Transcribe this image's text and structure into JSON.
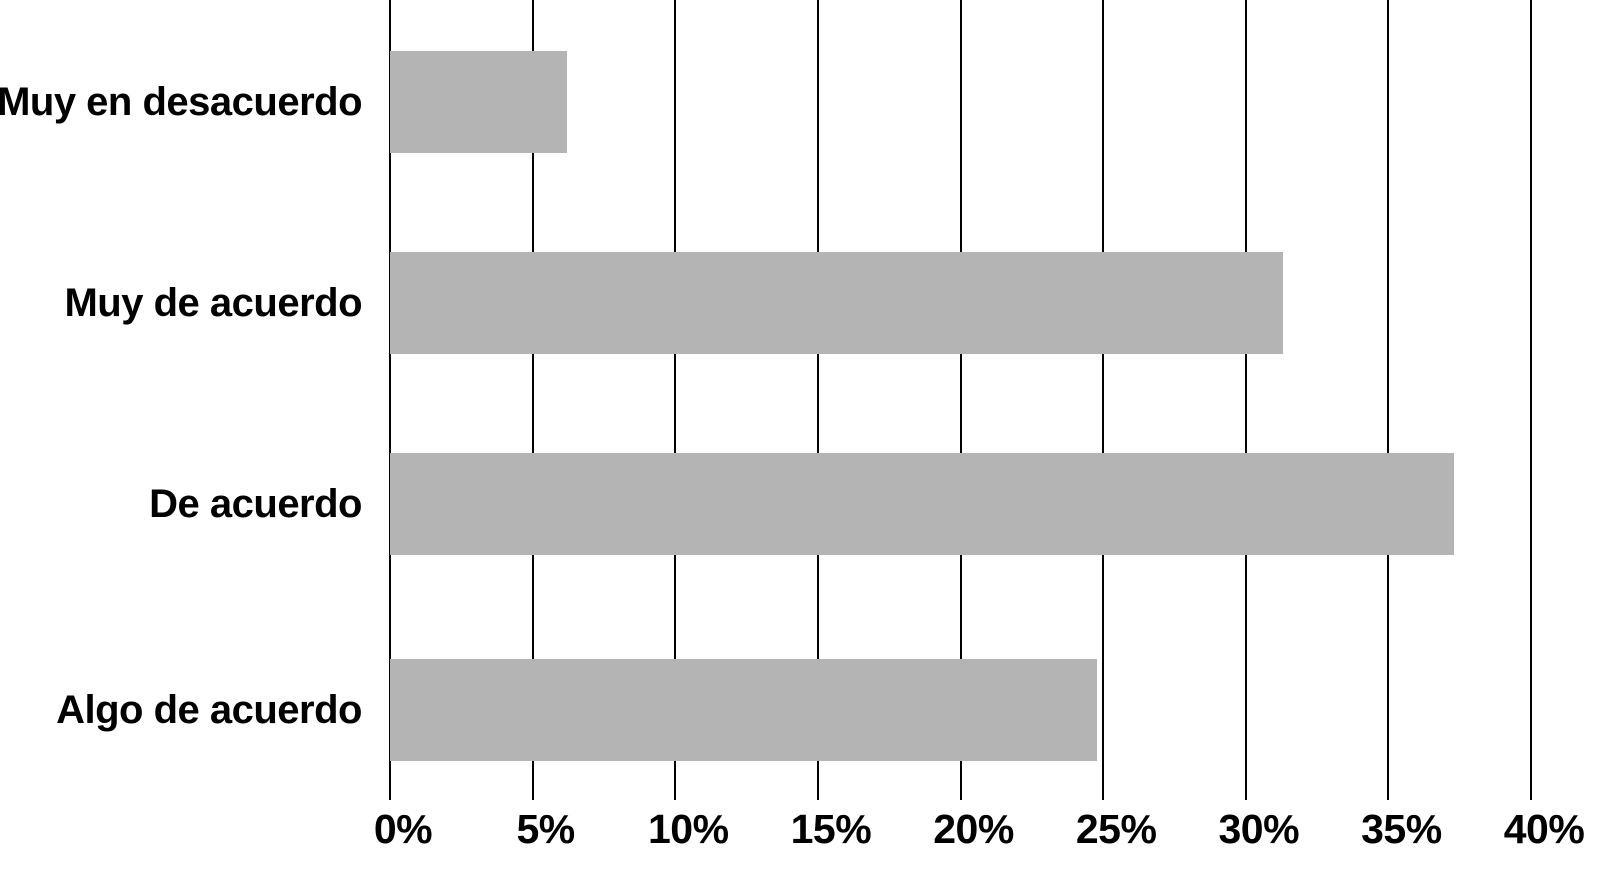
{
  "chart_data": {
    "type": "bar",
    "orientation": "horizontal",
    "title": "",
    "xlabel": "",
    "ylabel": "",
    "categories": [
      "Muy en desacuerdo",
      "Muy de acuerdo",
      "De acuerdo",
      "Algo de acuerdo"
    ],
    "values": [
      6.2,
      31.3,
      37.3,
      24.8
    ],
    "value_unit": "%",
    "xlim": [
      0,
      40
    ],
    "x_tick_values": [
      0,
      5,
      10,
      15,
      20,
      25,
      30,
      35,
      40
    ],
    "x_tick_labels": [
      "0%",
      "5%",
      "10%",
      "15%",
      "20%",
      "25%",
      "30%",
      "35%",
      "40%"
    ],
    "grid": "vertical-gridlines-on",
    "legend": "none",
    "colors": {
      "bar_fill": "#b4b4b4",
      "gridline": "#000000",
      "text": "#000000",
      "background": "#ffffff"
    }
  }
}
